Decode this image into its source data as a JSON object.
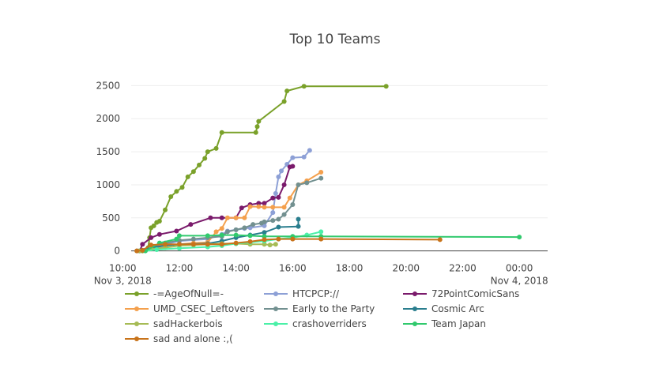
{
  "chart_data": {
    "type": "line",
    "title": "Top 10 Teams",
    "xlabel": "",
    "ylabel": "",
    "xlim": [
      10.3,
      25.0
    ],
    "ylim": [
      -40,
      2600
    ],
    "y_ticks": [
      0,
      500,
      1000,
      1500,
      2000,
      2500
    ],
    "y_tick_labels": [
      "0",
      "500",
      "1000",
      "1500",
      "2000",
      "2500"
    ],
    "x_ticks": [
      10,
      12,
      14,
      16,
      18,
      20,
      22,
      24
    ],
    "x_tick_labels": [
      "10:00",
      "12:00",
      "14:00",
      "16:00",
      "18:00",
      "20:00",
      "22:00",
      "00:00"
    ],
    "x_date_labels": [
      {
        "x": 10,
        "text": "Nov 3, 2018"
      },
      {
        "x": 24,
        "text": "Nov 4, 2018"
      }
    ],
    "series": [
      {
        "name": "-=AgeOfNull=-",
        "color": "#7aa12a",
        "x": [
          10.7,
          10.9,
          10.95,
          11.0,
          11.1,
          11.2,
          11.3,
          11.5,
          11.7,
          11.9,
          12.1,
          12.3,
          12.5,
          12.7,
          12.9,
          13.0,
          13.3,
          13.5,
          14.7,
          14.75,
          14.8,
          15.7,
          15.8,
          16.4,
          19.3
        ],
        "y": [
          0,
          50,
          200,
          350,
          380,
          430,
          450,
          620,
          820,
          900,
          960,
          1120,
          1200,
          1300,
          1400,
          1500,
          1550,
          1790,
          1790,
          1880,
          1960,
          2260,
          2420,
          2490,
          2490
        ]
      },
      {
        "name": "HTCPCP://",
        "color": "#8da0d6",
        "x": [
          10.6,
          10.8,
          11.0,
          11.2,
          11.5,
          12.0,
          13.0,
          13.5,
          13.7,
          14.0,
          14.3,
          14.5,
          15.0,
          15.3,
          15.4,
          15.5,
          15.6,
          15.8,
          16.0,
          16.4,
          16.6
        ],
        "y": [
          0,
          10,
          30,
          60,
          100,
          150,
          180,
          250,
          300,
          320,
          340,
          350,
          380,
          580,
          870,
          1120,
          1210,
          1310,
          1410,
          1420,
          1520
        ]
      },
      {
        "name": "72PointComicSans",
        "color": "#7a1a6b",
        "x": [
          10.6,
          10.7,
          11.0,
          11.3,
          11.9,
          12.4,
          13.1,
          13.5,
          14.0,
          14.2,
          14.5,
          14.8,
          15.0,
          15.3,
          15.5,
          15.7,
          15.9,
          16.0
        ],
        "y": [
          0,
          100,
          200,
          250,
          300,
          400,
          500,
          500,
          500,
          650,
          700,
          720,
          720,
          800,
          810,
          1000,
          1270,
          1280
        ]
      },
      {
        "name": "UMD_CSEC_Leftovers",
        "color": "#f4a04d",
        "x": [
          10.5,
          11.0,
          11.5,
          12.0,
          12.5,
          13.0,
          13.3,
          13.5,
          13.7,
          14.0,
          14.3,
          14.5,
          14.8,
          15.0,
          15.3,
          15.7,
          15.9,
          16.2,
          16.5,
          17.0
        ],
        "y": [
          0,
          50,
          80,
          100,
          120,
          130,
          290,
          340,
          500,
          500,
          500,
          670,
          670,
          660,
          660,
          660,
          800,
          1000,
          1060,
          1190
        ]
      },
      {
        "name": "Early to the Party",
        "color": "#729090",
        "x": [
          10.5,
          11.0,
          11.5,
          12.0,
          12.5,
          13.0,
          13.5,
          13.7,
          14.0,
          14.3,
          14.6,
          14.9,
          15.0,
          15.3,
          15.5,
          15.7,
          16.0,
          16.2,
          16.5,
          17.0
        ],
        "y": [
          0,
          60,
          120,
          160,
          180,
          200,
          220,
          290,
          320,
          350,
          400,
          420,
          440,
          460,
          480,
          550,
          700,
          1000,
          1030,
          1100
        ]
      },
      {
        "name": "Cosmic Arc",
        "color": "#2a7e8e",
        "x": [
          10.6,
          11.0,
          11.5,
          12.0,
          13.0,
          13.5,
          14.0,
          14.5,
          15.0,
          15.5,
          16.2,
          16.2
        ],
        "y": [
          0,
          50,
          80,
          100,
          110,
          150,
          200,
          240,
          280,
          360,
          370,
          480
        ]
      },
      {
        "name": "sadHackerbois",
        "color": "#a6bb55",
        "x": [
          10.6,
          11.0,
          11.5,
          12.0,
          12.5,
          13.0,
          13.5,
          14.0,
          14.5,
          15.0,
          15.2,
          15.4
        ],
        "y": [
          0,
          30,
          50,
          80,
          90,
          100,
          110,
          110,
          100,
          100,
          90,
          100
        ]
      },
      {
        "name": "crashoverriders",
        "color": "#4bf0a8",
        "x": [
          10.8,
          11.2,
          12.0,
          13.0,
          13.5,
          14.0,
          14.5,
          15.0,
          15.5,
          16.0,
          16.5,
          17.0
        ],
        "y": [
          0,
          20,
          40,
          60,
          80,
          110,
          130,
          150,
          180,
          200,
          240,
          290
        ]
      },
      {
        "name": "Team Japan",
        "color": "#31c96d",
        "x": [
          10.8,
          11.3,
          11.9,
          12.0,
          13.0,
          13.5,
          14.0,
          14.5,
          15.0,
          16.0,
          17.0,
          24.0
        ],
        "y": [
          0,
          120,
          180,
          230,
          230,
          240,
          240,
          230,
          220,
          220,
          220,
          210
        ]
      },
      {
        "name": "sad and alone :,(",
        "color": "#c8731a",
        "x": [
          10.5,
          10.7,
          11.0,
          11.5,
          12.0,
          12.5,
          13.0,
          13.5,
          14.0,
          14.5,
          15.0,
          15.5,
          16.0,
          17.0,
          21.2
        ],
        "y": [
          0,
          10,
          90,
          100,
          100,
          100,
          100,
          100,
          120,
          140,
          170,
          180,
          180,
          180,
          170
        ]
      }
    ]
  }
}
